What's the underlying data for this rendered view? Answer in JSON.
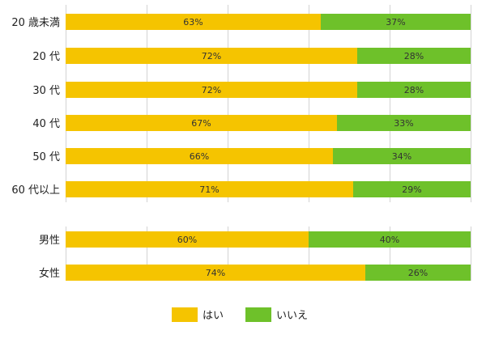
{
  "chart_data": {
    "type": "bar",
    "stacked": true,
    "orientation": "horizontal",
    "value_format": "percent",
    "xlim": [
      0,
      100
    ],
    "grid": true,
    "legend_position": "bottom",
    "categories": [
      "20 歳未満",
      "20 代",
      "30 代",
      "40 代",
      "50 代",
      "60 代以上",
      "男性",
      "女性"
    ],
    "groups": [
      [
        "20 歳未満",
        "20 代",
        "30 代",
        "40 代",
        "50 代",
        "60 代以上"
      ],
      [
        "男性",
        "女性"
      ]
    ],
    "series": [
      {
        "name": "はい",
        "color": "#F5C400",
        "values": [
          63,
          72,
          72,
          67,
          66,
          71,
          60,
          74
        ]
      },
      {
        "name": "いいえ",
        "color": "#6EC12A",
        "values": [
          37,
          28,
          28,
          33,
          34,
          29,
          40,
          26
        ]
      }
    ]
  }
}
